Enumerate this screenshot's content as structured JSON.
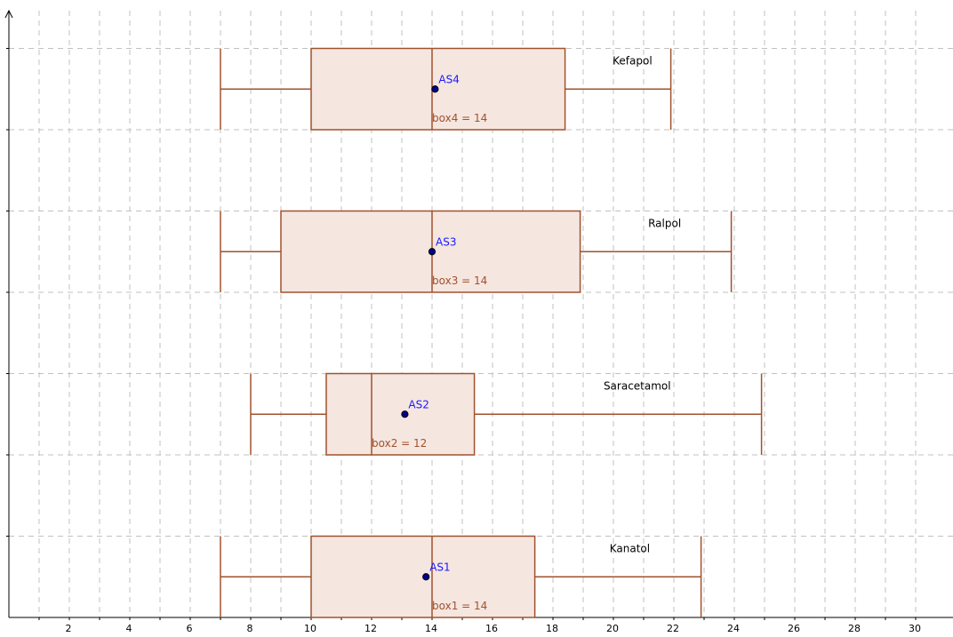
{
  "chart_data": {
    "type": "boxplot",
    "title": "",
    "xlabel": "",
    "ylabel": "",
    "xlim": [
      0,
      30.8
    ],
    "x_ticks": [
      2,
      4,
      6,
      8,
      10,
      12,
      14,
      16,
      18,
      20,
      22,
      24,
      26,
      28,
      30
    ],
    "grid": true,
    "boxes": [
      {
        "name": "Kanatol",
        "min": 7,
        "q1": 10,
        "median": 14,
        "q3": 17.4,
        "max": 22.9,
        "mean": 13.8,
        "point_label": "AS1",
        "box_label": "box1 = 14"
      },
      {
        "name": "Saracetamol",
        "min": 8,
        "q1": 10.5,
        "median": 12,
        "q3": 15.4,
        "max": 24.9,
        "mean": 13.1,
        "point_label": "AS2",
        "box_label": "box2 = 12"
      },
      {
        "name": "Ralpol",
        "min": 7,
        "q1": 9,
        "median": 14,
        "q3": 18.9,
        "max": 23.9,
        "mean": 14,
        "point_label": "AS3",
        "box_label": "box3 = 14"
      },
      {
        "name": "Kefapol",
        "min": 7,
        "q1": 10,
        "median": 14,
        "q3": 18.4,
        "max": 21.9,
        "mean": 14.1,
        "point_label": "AS4",
        "box_label": "box4 = 14"
      }
    ]
  }
}
